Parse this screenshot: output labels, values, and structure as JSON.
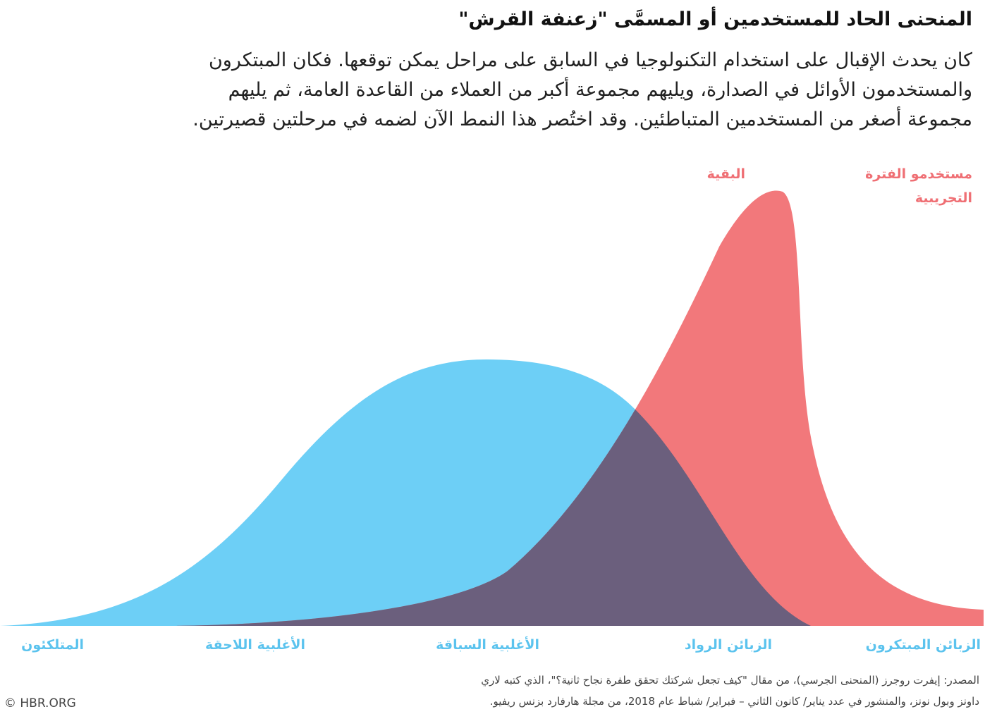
{
  "header": {
    "title": "المنحنى الحاد للمستخدمين أو المسمَّى \"زعنفة القرش\"",
    "intro": [
      "كان يحدث الإقبال على استخدام التكنولوجيا في السابق على مراحل يمكن توقعها. فكان المبتكرون",
      "والمستخدمون الأوائل في الصدارة، ويليهم مجموعة أكبر من العملاء من القاعدة العامة، ثم يليهم",
      "مجموعة أصغر من المستخدمين المتباطئين. وقد اختُصر هذا النمط الآن لضمه في مرحلتين قصيرتين."
    ]
  },
  "curve_labels": {
    "trial_users": [
      "مستخدمو الفترة",
      "التجريبية"
    ],
    "rest": "البقية"
  },
  "segments": [
    "الزبائن المبتكرون",
    "الزبائن الرواد",
    "الأغلبية السباقة",
    "الأغلبية اللاحقة",
    "المتلكئون"
  ],
  "footer": {
    "source": [
      "المصدر: إيفرت روجرز (المنحنى الجرسي)، من مقال \"كيف تجعل شركتك تحقق طفرة نجاح ثانية؟\"، الذي كتبه لاري",
      "داونز وبول نونز، والمنشور في عدد يناير/ كانون الثاني – فبراير/ شباط عام 2018، من مجلة هارفارد بزنس ريفيو."
    ],
    "copyright": "© HBR.ORG"
  }
}
